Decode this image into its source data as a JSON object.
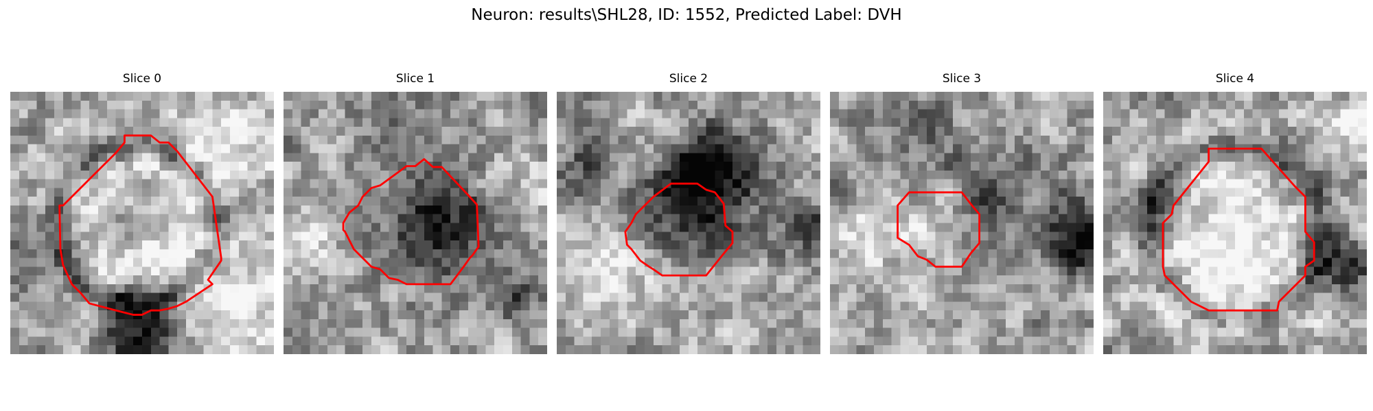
{
  "figure": {
    "title": "Neuron: results\\SHL28, ID: 1552, Predicted Label: DVH"
  },
  "colors": {
    "contour": "#ff0000",
    "background": "#ffffff"
  },
  "panels": [
    {
      "title": "Slice 0",
      "seed": 11,
      "dark_spots": [
        [
          0.48,
          0.48,
          0.09,
          0.35
        ],
        [
          0.5,
          0.9,
          0.11,
          0.75
        ],
        [
          0.1,
          0.62,
          0.12,
          0.35
        ]
      ],
      "bright_spots": [
        [
          0.5,
          0.55,
          0.28,
          0.35
        ],
        [
          0.85,
          0.15,
          0.13,
          0.25
        ],
        [
          0.85,
          0.85,
          0.12,
          0.3
        ]
      ],
      "ring": [
        0.48,
        0.5,
        0.3,
        0.35
      ]
    },
    {
      "title": "Slice 1",
      "seed": 23,
      "dark_spots": [
        [
          0.57,
          0.52,
          0.13,
          0.55
        ],
        [
          0.87,
          0.78,
          0.08,
          0.3
        ],
        [
          0.45,
          0.12,
          0.1,
          0.2
        ]
      ],
      "bright_spots": [
        [
          0.08,
          0.55,
          0.1,
          0.2
        ],
        [
          0.92,
          0.3,
          0.09,
          0.2
        ]
      ],
      "ring": [
        0.5,
        0.5,
        0.28,
        0.0
      ]
    },
    {
      "title": "Slice 2",
      "seed": 37,
      "dark_spots": [
        [
          0.53,
          0.4,
          0.14,
          0.6
        ],
        [
          0.6,
          0.28,
          0.1,
          0.35
        ],
        [
          0.12,
          0.3,
          0.1,
          0.3
        ],
        [
          0.95,
          0.5,
          0.08,
          0.3
        ]
      ],
      "bright_spots": [
        [
          0.2,
          0.7,
          0.14,
          0.25
        ],
        [
          0.3,
          0.2,
          0.1,
          0.15
        ]
      ],
      "ring": [
        0.5,
        0.5,
        0.3,
        0.0
      ]
    },
    {
      "title": "Slice 3",
      "seed": 51,
      "dark_spots": [
        [
          0.95,
          0.55,
          0.1,
          0.65
        ],
        [
          0.6,
          0.4,
          0.12,
          0.3
        ],
        [
          0.35,
          0.15,
          0.1,
          0.2
        ]
      ],
      "bright_spots": [
        [
          0.15,
          0.55,
          0.1,
          0.3
        ],
        [
          0.4,
          0.5,
          0.1,
          0.2
        ]
      ],
      "ring": [
        0.5,
        0.5,
        0.3,
        0.0
      ]
    },
    {
      "title": "Slice 4",
      "seed": 67,
      "dark_spots": [
        [
          0.9,
          0.65,
          0.09,
          0.55
        ],
        [
          0.2,
          0.45,
          0.1,
          0.3
        ],
        [
          0.7,
          0.3,
          0.1,
          0.2
        ]
      ],
      "bright_spots": [
        [
          0.5,
          0.55,
          0.26,
          0.4
        ],
        [
          0.9,
          0.1,
          0.1,
          0.2
        ]
      ],
      "ring": [
        0.5,
        0.53,
        0.33,
        0.3
      ]
    }
  ]
}
